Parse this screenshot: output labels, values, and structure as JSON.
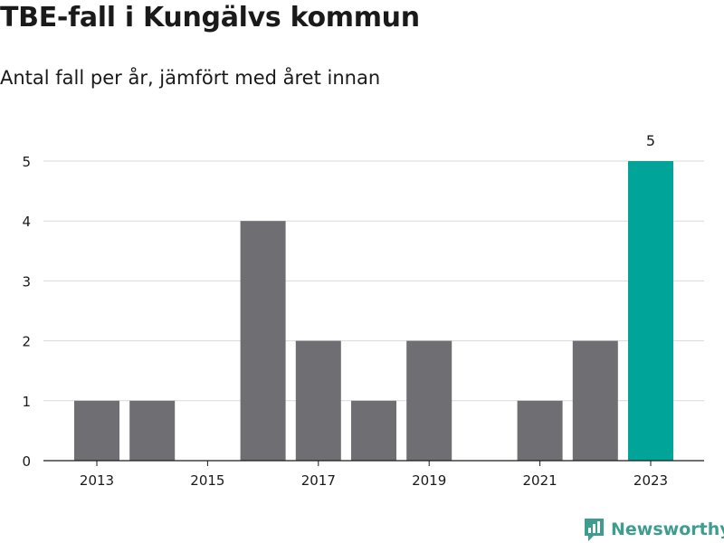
{
  "header": {
    "title": "TBE-fall i Kungälvs kommun",
    "subtitle": "Antal fall per år, jämfört med året innan"
  },
  "brand": {
    "name": "Newsworthy",
    "icon": "newsworthy-logo-icon"
  },
  "colors": {
    "bar": "#6f6e73",
    "highlight": "#00a499",
    "grid": "#d9d9d9",
    "brand": "#3d9e8f"
  },
  "chart_data": {
    "type": "bar",
    "categories": [
      "2013",
      "2014",
      "2015",
      "2016",
      "2017",
      "2018",
      "2019",
      "2020",
      "2021",
      "2022",
      "2023"
    ],
    "values": [
      1,
      1,
      0,
      4,
      2,
      1,
      2,
      0,
      1,
      2,
      5
    ],
    "xtick_labels": [
      "2013",
      "2015",
      "2017",
      "2019",
      "2021",
      "2023"
    ],
    "yticks": [
      0,
      1,
      2,
      3,
      4,
      5
    ],
    "ylim": [
      0,
      5
    ],
    "highlight_category": "2023",
    "data_labels": [
      {
        "category": "2023",
        "text": "5"
      }
    ],
    "grid": true,
    "title": "TBE-fall i Kungälvs kommun",
    "xlabel": "",
    "ylabel": ""
  }
}
